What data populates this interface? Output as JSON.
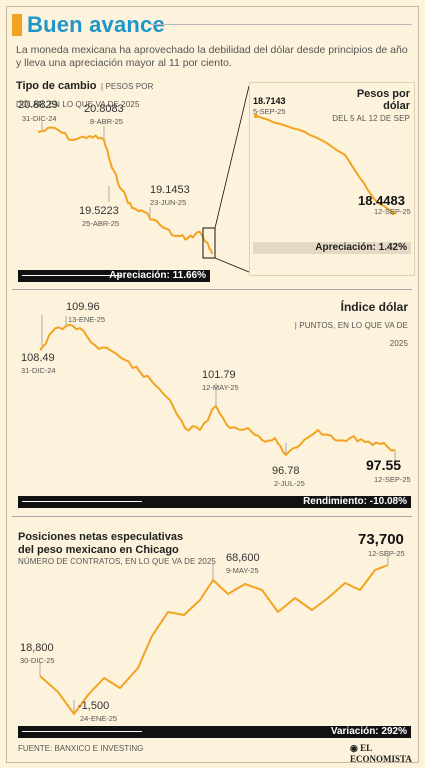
{
  "header": {
    "title": "Buen avance",
    "lede": "La moneda mexicana ha aprovechado la debilidad del dólar desde principios de año y lleva una apreciación mayor al 11 por ciento."
  },
  "footer": {
    "source": "FUENTE: BANXICO E INVESTING",
    "brand": "EL ECONOMISTA"
  },
  "colors": {
    "line": "#f2a321",
    "title": "#1f96c9",
    "bar": "#111111"
  },
  "chart_data": [
    {
      "type": "line",
      "title": "Tipo de cambio",
      "subtitle": "PESOS POR DÓLAR, EN LO QUE VA DE 2025",
      "x": [
        "31-DIC-24",
        "8-ABR-25",
        "25-ABR-25",
        "23-JUN-25",
        "12-SEP-25"
      ],
      "values": [
        20.8829,
        20.8083,
        19.5223,
        19.1453,
        18.4483
      ],
      "annotations": [
        {
          "value": "20.8829",
          "date": "31-DIC-24"
        },
        {
          "value": "20.8083",
          "date": "8-ABR-25"
        },
        {
          "value": "19.5223",
          "date": "25-ABR-25"
        },
        {
          "value": "19.1453",
          "date": "23-JUN-25"
        }
      ],
      "bar_label": "Apreciación: 11.66%"
    },
    {
      "type": "line",
      "title": "Pesos por dólar",
      "subtitle": "DEL 5 AL 12 DE SEP",
      "x": [
        "5-SEP-25",
        "12-SEP-25"
      ],
      "values": [
        18.7143,
        18.4483
      ],
      "annotations": [
        {
          "value": "18.7143",
          "date": "5-SEP-25"
        },
        {
          "value": "18.4483",
          "date": "12-SEP-25"
        }
      ],
      "bar_label": "Apreciación: 1.42%"
    },
    {
      "type": "line",
      "title": "Índice dólar",
      "subtitle": "PUNTOS, EN LO QUE VA DE 2025",
      "x": [
        "31-DIC-24",
        "13-ENE-25",
        "12-MAY-25",
        "2-JUL-25",
        "12-SEP-25"
      ],
      "values": [
        108.49,
        109.96,
        101.79,
        96.78,
        97.55
      ],
      "annotations": [
        {
          "value": "109.96",
          "date": "13-ENE-25"
        },
        {
          "value": "108.49",
          "date": "31-DIC-24"
        },
        {
          "value": "101.79",
          "date": "12-MAY-25"
        },
        {
          "value": "96.78",
          "date": "2-JUL-25"
        },
        {
          "value": "97.55",
          "date": "12-SEP-25"
        }
      ],
      "bar_label": "Rendimiento: -10.08%"
    },
    {
      "type": "line",
      "title": "Posiciones netas especulativas del peso mexicano en Chicago",
      "subtitle": "NÚMERO DE CONTRATOS, EN LO QUE VA DE 2025",
      "x": [
        "30-DIC-25",
        "24-ENE-25",
        "9-MAY-25",
        "12-SEP-25"
      ],
      "values": [
        18800,
        -1500,
        68600,
        73700
      ],
      "annotations": [
        {
          "value": "18,800",
          "date": "30-DIC-25"
        },
        {
          "value": "-1,500",
          "date": "24-ENE-25"
        },
        {
          "value": "68,600",
          "date": "9-MAY-25"
        },
        {
          "value": "73,700",
          "date": "12-SEP-25"
        }
      ],
      "bar_label": "Variación: 292%"
    }
  ]
}
